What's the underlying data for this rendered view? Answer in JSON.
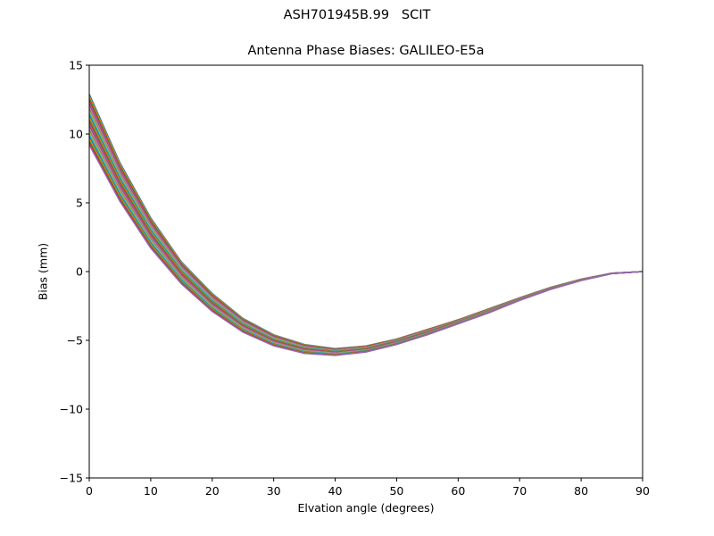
{
  "figure": {
    "suptitle": "ASH701945B.99   SCIT",
    "title": "Antenna Phase Biases: GALILEO-E5a",
    "xlabel": "Elvation angle (degrees)",
    "ylabel": "Bias (mm)"
  },
  "chart_data": {
    "type": "line",
    "title": "Antenna Phase Biases: GALILEO-E5a",
    "suptitle": "ASH701945B.99   SCIT",
    "xlabel": "Elvation angle (degrees)",
    "ylabel": "Bias (mm)",
    "xlim": [
      0,
      90
    ],
    "ylim": [
      -15,
      15
    ],
    "xticks": [
      0,
      10,
      20,
      30,
      40,
      50,
      60,
      70,
      80,
      90
    ],
    "yticks": [
      15,
      10,
      5,
      0,
      -5,
      -10,
      -15
    ],
    "ytick_labels": [
      "15",
      "10",
      "5",
      "0",
      "−5",
      "−10",
      "−15"
    ],
    "grid": false,
    "legend": null,
    "note": "Many overlapping series (one per azimuth) drawn with matplotlib default color cycle; envelope given by upper and lower series",
    "x": [
      0,
      5,
      10,
      15,
      20,
      25,
      30,
      35,
      40,
      45,
      50,
      55,
      60,
      65,
      70,
      75,
      80,
      85,
      90
    ],
    "series_envelope": {
      "upper": [
        12.9,
        7.9,
        3.9,
        0.7,
        -1.6,
        -3.4,
        -4.6,
        -5.3,
        -5.6,
        -5.4,
        -4.9,
        -4.2,
        -3.5,
        -2.7,
        -1.9,
        -1.15,
        -0.55,
        -0.12,
        0.0
      ],
      "lower": [
        9.2,
        5.1,
        1.7,
        -0.9,
        -2.9,
        -4.4,
        -5.4,
        -5.95,
        -6.1,
        -5.85,
        -5.3,
        -4.6,
        -3.8,
        -3.0,
        -2.1,
        -1.3,
        -0.65,
        -0.15,
        0.0
      ]
    },
    "series_count_estimate": 25,
    "colors": [
      "#1f77b4",
      "#ff7f0e",
      "#2ca02c",
      "#d62728",
      "#9467bd",
      "#8c564b",
      "#e377c2",
      "#7f7f7f",
      "#bcbd22",
      "#17becf"
    ]
  }
}
